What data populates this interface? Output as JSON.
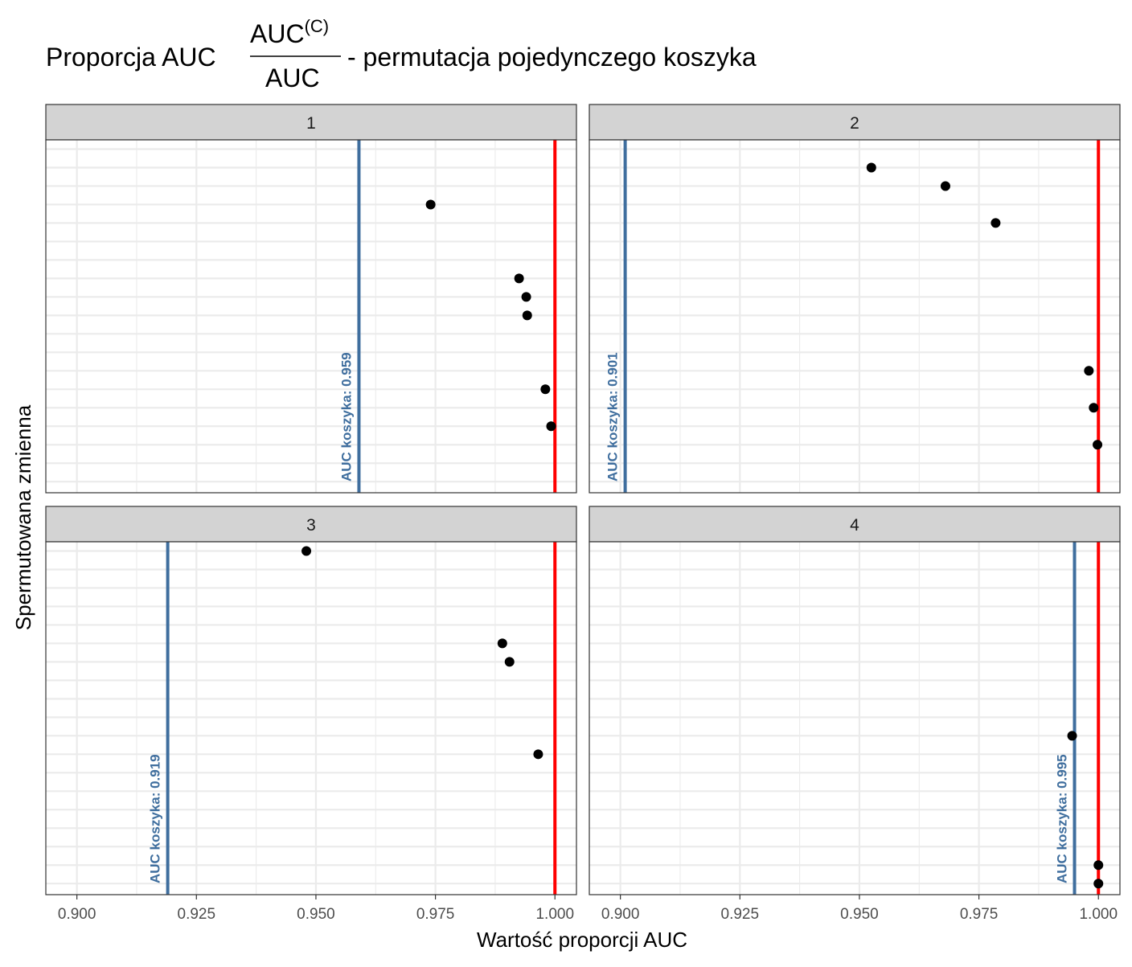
{
  "title": {
    "prefix": "Proporcja AUC",
    "fraction_numerator": "AUC",
    "fraction_superscript": "(C)",
    "fraction_denominator": "AUC",
    "suffix": "- permutacja pojedynczego koszyka"
  },
  "chart_data": {
    "type": "scatter",
    "xlabel": "Wartość proporcji AUC",
    "ylabel": "Spermutowana zmienna",
    "xlim": [
      0.8935,
      1.0045
    ],
    "x_ticks": [
      0.9,
      0.925,
      0.95,
      0.975,
      1.0
    ],
    "x_tick_labels": [
      "0.900",
      "0.925",
      "0.950",
      "0.975",
      "1.000"
    ],
    "y_levels": 19,
    "reference_line": {
      "x": 1.0,
      "color": "#FF0000"
    },
    "basket_line_color": "#3F6E9E",
    "point_color": "#000000",
    "grid": true,
    "facets": [
      {
        "label": "1",
        "basket_auc": 0.959,
        "basket_label": "AUC koszyka: 0.959",
        "points": [
          {
            "x": 0.974,
            "y": 16
          },
          {
            "x": 0.9925,
            "y": 12
          },
          {
            "x": 0.994,
            "y": 11
          },
          {
            "x": 0.9942,
            "y": 10
          },
          {
            "x": 0.998,
            "y": 6
          },
          {
            "x": 0.9992,
            "y": 4
          }
        ]
      },
      {
        "label": "2",
        "basket_auc": 0.901,
        "basket_label": "AUC koszyka: 0.901",
        "points": [
          {
            "x": 0.9525,
            "y": 18
          },
          {
            "x": 0.968,
            "y": 17
          },
          {
            "x": 0.9785,
            "y": 15
          },
          {
            "x": 0.998,
            "y": 7
          },
          {
            "x": 0.999,
            "y": 5
          },
          {
            "x": 0.9998,
            "y": 3
          }
        ]
      },
      {
        "label": "3",
        "basket_auc": 0.919,
        "basket_label": "AUC koszyka: 0.919",
        "points": [
          {
            "x": 0.948,
            "y": 19
          },
          {
            "x": 0.989,
            "y": 14
          },
          {
            "x": 0.9905,
            "y": 13
          },
          {
            "x": 0.9965,
            "y": 8
          }
        ]
      },
      {
        "label": "4",
        "basket_auc": 0.995,
        "basket_label": "AUC koszyka: 0.995",
        "points": [
          {
            "x": 0.9945,
            "y": 9
          },
          {
            "x": 1.0,
            "y": 2
          },
          {
            "x": 1.0,
            "y": 1
          }
        ]
      }
    ]
  }
}
